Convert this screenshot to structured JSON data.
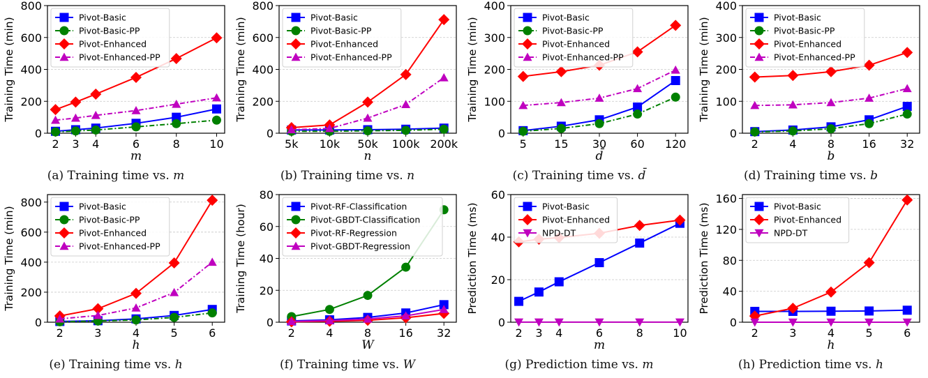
{
  "chart_data": [
    {
      "type": "line",
      "panel": "a",
      "caption": "(a) Training time vs. ",
      "caption_var": "m",
      "xlabel": "m",
      "ylabel": "Training Time (min)",
      "x_scale": "linear",
      "x": [
        2,
        3,
        4,
        6,
        8,
        10
      ],
      "xticks": [
        "2",
        "3",
        "4",
        "6",
        "8",
        "10"
      ],
      "xlim": [
        1.6,
        10.4
      ],
      "ylim": [
        0,
        800
      ],
      "yticks": [
        0,
        200,
        400,
        600,
        800
      ],
      "grid": true,
      "legend": "top-left",
      "series": [
        {
          "name": "Pivot-Basic",
          "color": "#0000ff",
          "marker": "square",
          "dash": "solid",
          "values": [
            12,
            22,
            32,
            62,
            100,
            152
          ]
        },
        {
          "name": "Pivot-Basic-PP",
          "color": "#008000",
          "marker": "circle",
          "dash": "dashdot",
          "values": [
            8,
            14,
            20,
            40,
            60,
            82
          ]
        },
        {
          "name": "Pivot-Enhanced",
          "color": "#ff0000",
          "marker": "diamond",
          "dash": "solid",
          "values": [
            148,
            195,
            245,
            350,
            468,
            598
          ]
        },
        {
          "name": "Pivot-Enhanced-PP",
          "color": "#bf00bf",
          "marker": "triangle",
          "dash": "dashdot",
          "values": [
            82,
            95,
            112,
            142,
            182,
            222
          ]
        }
      ]
    },
    {
      "type": "line",
      "panel": "b",
      "caption": "(b) Training time vs. ",
      "caption_var": "n",
      "xlabel": "n",
      "ylabel": "Training Time (min)",
      "x_scale": "category",
      "x": [
        "5k",
        "10k",
        "50k",
        "100k",
        "200k"
      ],
      "xticks": [
        "5k",
        "10k",
        "50k",
        "100k",
        "200k"
      ],
      "ylim": [
        0,
        800
      ],
      "yticks": [
        0,
        200,
        400,
        600,
        800
      ],
      "grid": true,
      "legend": "top-left",
      "series": [
        {
          "name": "Pivot-Basic",
          "color": "#0000ff",
          "marker": "square",
          "dash": "solid",
          "values": [
            20,
            20,
            22,
            25,
            32
          ]
        },
        {
          "name": "Pivot-Basic-PP",
          "color": "#008000",
          "marker": "circle",
          "dash": "dashdot",
          "values": [
            12,
            12,
            15,
            18,
            25
          ]
        },
        {
          "name": "Pivot-Enhanced",
          "color": "#ff0000",
          "marker": "diamond",
          "dash": "solid",
          "values": [
            35,
            52,
            195,
            368,
            712
          ]
        },
        {
          "name": "Pivot-Enhanced-PP",
          "color": "#bf00bf",
          "marker": "triangle",
          "dash": "dashdot",
          "values": [
            22,
            30,
            95,
            180,
            348
          ]
        }
      ]
    },
    {
      "type": "line",
      "panel": "c",
      "caption": "(c) Training time vs. ",
      "caption_var": "d̄",
      "xlabel": "d̄",
      "ylabel": "Training Time (min)",
      "x_scale": "category",
      "x": [
        "5",
        "15",
        "30",
        "60",
        "120"
      ],
      "xticks": [
        "5",
        "15",
        "30",
        "60",
        "120"
      ],
      "ylim": [
        0,
        400
      ],
      "yticks": [
        0,
        100,
        200,
        300,
        400
      ],
      "grid": true,
      "legend": "top-left",
      "series": [
        {
          "name": "Pivot-Basic",
          "color": "#0000ff",
          "marker": "square",
          "dash": "solid",
          "values": [
            8,
            22,
            42,
            82,
            165
          ]
        },
        {
          "name": "Pivot-Basic-PP",
          "color": "#008000",
          "marker": "circle",
          "dash": "dashdot",
          "values": [
            6,
            15,
            30,
            60,
            113
          ]
        },
        {
          "name": "Pivot-Enhanced",
          "color": "#ff0000",
          "marker": "diamond",
          "dash": "solid",
          "values": [
            178,
            193,
            213,
            255,
            338
          ]
        },
        {
          "name": "Pivot-Enhanced-PP",
          "color": "#bf00bf",
          "marker": "triangle",
          "dash": "dashdot",
          "values": [
            87,
            96,
            110,
            140,
            198
          ]
        }
      ]
    },
    {
      "type": "line",
      "panel": "d",
      "caption": "(d) Training time vs. ",
      "caption_var": "b",
      "xlabel": "b",
      "ylabel": "Training Time (min)",
      "x_scale": "category",
      "x": [
        "2",
        "4",
        "8",
        "16",
        "32"
      ],
      "xticks": [
        "2",
        "4",
        "8",
        "16",
        "32"
      ],
      "ylim": [
        0,
        400
      ],
      "yticks": [
        0,
        100,
        200,
        300,
        400
      ],
      "grid": true,
      "legend": "top-left",
      "series": [
        {
          "name": "Pivot-Basic",
          "color": "#0000ff",
          "marker": "square",
          "dash": "solid",
          "values": [
            5,
            10,
            20,
            42,
            84
          ]
        },
        {
          "name": "Pivot-Basic-PP",
          "color": "#008000",
          "marker": "circle",
          "dash": "dashdot",
          "values": [
            4,
            7,
            14,
            30,
            60
          ]
        },
        {
          "name": "Pivot-Enhanced",
          "color": "#ff0000",
          "marker": "diamond",
          "dash": "solid",
          "values": [
            176,
            181,
            193,
            213,
            253
          ]
        },
        {
          "name": "Pivot-Enhanced-PP",
          "color": "#bf00bf",
          "marker": "triangle",
          "dash": "dashdot",
          "values": [
            87,
            89,
            96,
            110,
            140
          ]
        }
      ]
    },
    {
      "type": "line",
      "panel": "e",
      "caption": "(e) Training time vs. ",
      "caption_var": "h",
      "xlabel": "h",
      "ylabel": "Training Time (min)",
      "x_scale": "category",
      "x": [
        "2",
        "3",
        "4",
        "5",
        "6"
      ],
      "xticks": [
        "2",
        "3",
        "4",
        "5",
        "6"
      ],
      "ylim": [
        0,
        850
      ],
      "yticks": [
        0,
        200,
        400,
        600,
        800
      ],
      "grid": true,
      "legend": "top-left",
      "series": [
        {
          "name": "Pivot-Basic",
          "color": "#0000ff",
          "marker": "square",
          "dash": "solid",
          "values": [
            5,
            10,
            22,
            45,
            85
          ]
        },
        {
          "name": "Pivot-Basic-PP",
          "color": "#008000",
          "marker": "circle",
          "dash": "dashdot",
          "values": [
            3,
            8,
            15,
            32,
            62
          ]
        },
        {
          "name": "Pivot-Enhanced",
          "color": "#ff0000",
          "marker": "diamond",
          "dash": "solid",
          "values": [
            42,
            90,
            192,
            395,
            812
          ]
        },
        {
          "name": "Pivot-Enhanced-PP",
          "color": "#bf00bf",
          "marker": "triangle",
          "dash": "dashdot",
          "values": [
            22,
            45,
            95,
            198,
            400
          ]
        }
      ]
    },
    {
      "type": "line",
      "panel": "f",
      "caption": "(f) Training time vs. ",
      "caption_var": "W",
      "xlabel": "W",
      "ylabel": "Training Time (hour)",
      "x_scale": "category",
      "x": [
        "2",
        "4",
        "8",
        "16",
        "32"
      ],
      "xticks": [
        "2",
        "4",
        "8",
        "16",
        "32"
      ],
      "ylim": [
        0,
        80
      ],
      "yticks": [
        0,
        20,
        40,
        60,
        80
      ],
      "grid": true,
      "legend": "top-left",
      "series": [
        {
          "name": "Pivot-RF-Classification",
          "color": "#0000ff",
          "marker": "square",
          "dash": "solid",
          "values": [
            0.8,
            1.5,
            3.0,
            5.8,
            11.0
          ]
        },
        {
          "name": "Pivot-GBDT-Classification",
          "color": "#008000",
          "marker": "circle",
          "dash": "solid",
          "values": [
            3.5,
            8.0,
            16.8,
            34.5,
            70.5
          ]
        },
        {
          "name": "Pivot-RF-Regression",
          "color": "#ff0000",
          "marker": "diamond",
          "dash": "solid",
          "values": [
            0.3,
            0.6,
            1.2,
            2.8,
            5.5
          ]
        },
        {
          "name": "Pivot-GBDT-Regression",
          "color": "#bf00bf",
          "marker": "triangle",
          "dash": "solid",
          "values": [
            0.5,
            1.0,
            2.0,
            4.0,
            8.0
          ]
        }
      ]
    },
    {
      "type": "line",
      "panel": "g",
      "caption": "(g) Prediction time vs. ",
      "caption_var": "m",
      "xlabel": "m",
      "ylabel": "Prediction Time (ms)",
      "x_scale": "linear",
      "x": [
        2,
        3,
        4,
        6,
        8,
        10
      ],
      "xticks": [
        "2",
        "3",
        "4",
        "6",
        "8",
        "10"
      ],
      "xlim": [
        1.6,
        10.4
      ],
      "ylim": [
        0,
        60
      ],
      "yticks": [
        0,
        20,
        40,
        60
      ],
      "grid": true,
      "legend": "top-left",
      "series": [
        {
          "name": "Pivot-Basic",
          "color": "#0000ff",
          "marker": "square",
          "dash": "solid",
          "values": [
            9.8,
            14.2,
            19.0,
            28.0,
            37.2,
            46.5
          ]
        },
        {
          "name": "Pivot-Enhanced",
          "color": "#ff0000",
          "marker": "diamond",
          "dash": "solid",
          "values": [
            37.8,
            39.0,
            39.8,
            41.8,
            45.5,
            48.0
          ]
        },
        {
          "name": "NPD-DT",
          "color": "#bf00bf",
          "marker": "triangle_down",
          "dash": "solid",
          "values": [
            0.05,
            0.05,
            0.05,
            0.05,
            0.05,
            0.05
          ]
        }
      ]
    },
    {
      "type": "line",
      "panel": "h",
      "caption": "(h) Prediction time vs. ",
      "caption_var": "h",
      "xlabel": "h",
      "ylabel": "Prediction Time (ms)",
      "x_scale": "category",
      "x": [
        "2",
        "3",
        "4",
        "5",
        "6"
      ],
      "xticks": [
        "2",
        "3",
        "4",
        "5",
        "6"
      ],
      "ylim": [
        0,
        165
      ],
      "yticks": [
        0,
        40,
        80,
        120,
        160
      ],
      "grid": true,
      "legend": "top-left",
      "series": [
        {
          "name": "Pivot-Basic",
          "color": "#0000ff",
          "marker": "square",
          "dash": "solid",
          "values": [
            14.0,
            14.0,
            14.2,
            14.5,
            15.5
          ]
        },
        {
          "name": "Pivot-Enhanced",
          "color": "#ff0000",
          "marker": "diamond",
          "dash": "solid",
          "values": [
            8.0,
            18.0,
            39.0,
            77.0,
            158.0
          ]
        },
        {
          "name": "NPD-DT",
          "color": "#bf00bf",
          "marker": "triangle_down",
          "dash": "solid",
          "values": [
            0.05,
            0.05,
            0.05,
            0.05,
            0.05
          ]
        }
      ]
    }
  ]
}
